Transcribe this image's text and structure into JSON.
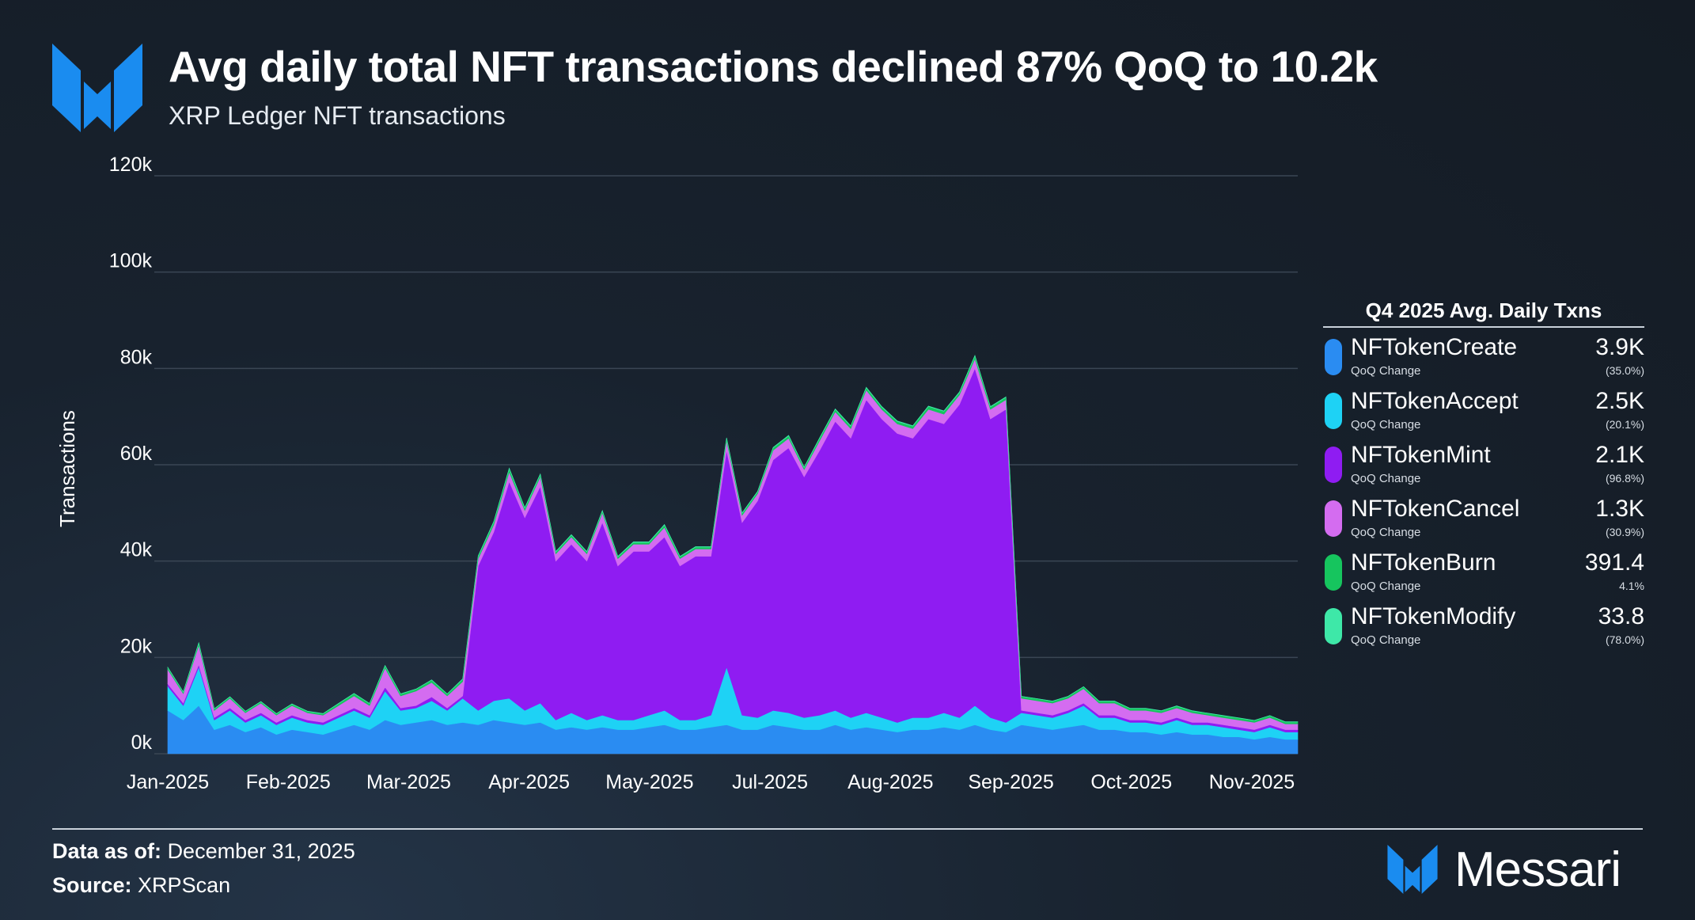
{
  "header": {
    "title": "Avg daily total NFT transactions declined 87% QoQ to 10.2k",
    "subtitle": "XRP Ledger NFT transactions"
  },
  "chart_data": {
    "type": "area",
    "stacked": true,
    "ylabel": "Transactions",
    "ylim": [
      0,
      120000
    ],
    "yticks": [
      "0k",
      "20k",
      "40k",
      "60k",
      "80k",
      "100k",
      "120k"
    ],
    "xticks": [
      "Jan-2025",
      "Feb-2025",
      "Mar-2025",
      "Apr-2025",
      "May-2025",
      "Jul-2025",
      "Aug-2025",
      "Sep-2025",
      "Oct-2025",
      "Nov-2025"
    ],
    "x_start": "2025-01-01",
    "x_end": "2025-12-31",
    "grid": true,
    "legend_position": "right",
    "dates": [
      "2025-01-01",
      "2025-01-06",
      "2025-01-11",
      "2025-01-16",
      "2025-01-21",
      "2025-01-26",
      "2025-01-31",
      "2025-02-05",
      "2025-02-10",
      "2025-02-15",
      "2025-02-20",
      "2025-02-25",
      "2025-03-02",
      "2025-03-07",
      "2025-03-12",
      "2025-03-17",
      "2025-03-22",
      "2025-03-27",
      "2025-04-01",
      "2025-04-06",
      "2025-04-11",
      "2025-04-16",
      "2025-04-21",
      "2025-04-26",
      "2025-05-01",
      "2025-05-06",
      "2025-05-11",
      "2025-05-16",
      "2025-05-21",
      "2025-05-26",
      "2025-05-31",
      "2025-06-05",
      "2025-06-10",
      "2025-06-15",
      "2025-06-20",
      "2025-06-25",
      "2025-06-30",
      "2025-07-05",
      "2025-07-10",
      "2025-07-15",
      "2025-07-20",
      "2025-07-25",
      "2025-07-30",
      "2025-08-04",
      "2025-08-09",
      "2025-08-14",
      "2025-08-19",
      "2025-08-24",
      "2025-08-29",
      "2025-09-03",
      "2025-09-08",
      "2025-09-13",
      "2025-09-18",
      "2025-09-23",
      "2025-09-28",
      "2025-10-03",
      "2025-10-08",
      "2025-10-13",
      "2025-10-18",
      "2025-10-23",
      "2025-10-28",
      "2025-11-02",
      "2025-11-07",
      "2025-11-12",
      "2025-11-17",
      "2025-11-22",
      "2025-11-27",
      "2025-12-02",
      "2025-12-07",
      "2025-12-12",
      "2025-12-17",
      "2025-12-22",
      "2025-12-27",
      "2025-12-31"
    ],
    "series": [
      {
        "name": "NFTokenCreate",
        "color": "#2a8cf2",
        "values": [
          9000,
          7000,
          10000,
          5000,
          6000,
          4500,
          5500,
          4000,
          5000,
          4500,
          4000,
          5000,
          6000,
          5000,
          7000,
          6000,
          6500,
          7000,
          6000,
          6500,
          6000,
          7000,
          6500,
          6000,
          6500,
          5000,
          5500,
          5000,
          5500,
          5000,
          5000,
          5500,
          6000,
          5000,
          5000,
          5500,
          6000,
          5000,
          5000,
          6000,
          5500,
          5000,
          5000,
          6000,
          5000,
          5500,
          5000,
          4500,
          5000,
          5000,
          5500,
          5000,
          6000,
          5000,
          4500,
          6000,
          5500,
          5000,
          5500,
          6000,
          5000,
          5000,
          4500,
          4500,
          4000,
          4500,
          4000,
          4000,
          3500,
          3500,
          3000,
          3500,
          3000,
          3000
        ]
      },
      {
        "name": "NFTokenAccept",
        "color": "#1ed2f5",
        "values": [
          5000,
          3000,
          8000,
          2000,
          3000,
          2000,
          2500,
          2000,
          2500,
          2000,
          2000,
          2500,
          3000,
          2500,
          6000,
          3000,
          3000,
          4000,
          3000,
          5000,
          3000,
          4000,
          5000,
          3000,
          4000,
          2000,
          3000,
          2000,
          2500,
          2000,
          2000,
          2500,
          3000,
          2000,
          2000,
          2500,
          12000,
          3000,
          2500,
          3000,
          3000,
          2500,
          3000,
          3000,
          2500,
          3000,
          2500,
          2000,
          2500,
          2500,
          3000,
          2500,
          4000,
          2500,
          2000,
          2500,
          2500,
          2500,
          3000,
          4000,
          2500,
          2500,
          2000,
          2000,
          2000,
          2500,
          2000,
          2000,
          2000,
          1500,
          1500,
          2000,
          1500,
          1500
        ]
      },
      {
        "name": "NFTokenMint",
        "color": "#8f1cf2",
        "values": [
          500,
          500,
          500,
          500,
          500,
          500,
          500,
          500,
          500,
          500,
          500,
          500,
          500,
          500,
          800,
          500,
          500,
          800,
          500,
          500,
          30000,
          35000,
          45000,
          40000,
          45000,
          33000,
          35000,
          33000,
          40000,
          32000,
          35000,
          34000,
          36000,
          32000,
          34000,
          33000,
          45000,
          40000,
          45000,
          52000,
          55000,
          50000,
          55000,
          60000,
          58000,
          65000,
          62000,
          60000,
          58000,
          62000,
          60000,
          65000,
          70000,
          62000,
          65000,
          500,
          500,
          500,
          500,
          500,
          500,
          500,
          500,
          500,
          500,
          500,
          500,
          500,
          500,
          500,
          500,
          500,
          500,
          500
        ]
      },
      {
        "name": "NFTokenCancel",
        "color": "#d46cf0",
        "values": [
          3000,
          2000,
          4000,
          1500,
          2000,
          1500,
          2000,
          1500,
          2000,
          1500,
          1500,
          2000,
          2500,
          2000,
          4000,
          2500,
          3000,
          3000,
          2500,
          3000,
          1500,
          1500,
          2000,
          1500,
          2000,
          1500,
          1500,
          1500,
          2000,
          1500,
          1500,
          1500,
          2000,
          1500,
          1500,
          1500,
          2000,
          1500,
          1500,
          2000,
          2000,
          1500,
          2000,
          2000,
          2000,
          2000,
          2000,
          2000,
          2000,
          2000,
          2000,
          2000,
          2000,
          2000,
          2000,
          2500,
          2500,
          2500,
          2500,
          3000,
          2500,
          2500,
          2000,
          2000,
          2000,
          2000,
          2000,
          1500,
          1500,
          1500,
          1500,
          1500,
          1200,
          1200
        ]
      },
      {
        "name": "NFTokenBurn",
        "color": "#16c55e",
        "values": [
          400,
          300,
          500,
          300,
          300,
          300,
          300,
          300,
          300,
          300,
          300,
          400,
          500,
          400,
          500,
          400,
          400,
          500,
          400,
          500,
          500,
          600,
          700,
          500,
          500,
          400,
          400,
          400,
          400,
          400,
          400,
          400,
          500,
          400,
          400,
          400,
          500,
          400,
          400,
          500,
          500,
          400,
          500,
          500,
          500,
          500,
          500,
          500,
          500,
          600,
          600,
          500,
          600,
          500,
          500,
          400,
          400,
          400,
          400,
          400,
          400,
          400,
          400,
          400,
          400,
          400,
          400,
          400,
          400,
          400,
          400,
          400,
          400,
          400
        ]
      },
      {
        "name": "NFTokenModify",
        "color": "#3ee8a8",
        "values": [
          50,
          50,
          50,
          50,
          50,
          50,
          50,
          50,
          50,
          50,
          50,
          50,
          50,
          50,
          50,
          50,
          50,
          50,
          50,
          50,
          100,
          100,
          100,
          100,
          100,
          100,
          100,
          100,
          100,
          100,
          100,
          100,
          100,
          100,
          100,
          100,
          100,
          100,
          100,
          100,
          100,
          100,
          100,
          100,
          100,
          100,
          100,
          100,
          100,
          100,
          100,
          100,
          100,
          100,
          100,
          40,
          40,
          40,
          40,
          40,
          40,
          40,
          40,
          40,
          40,
          40,
          40,
          40,
          40,
          40,
          40,
          40,
          40,
          40
        ]
      }
    ]
  },
  "legend": {
    "title": "Q4 2025 Avg. Daily Txns",
    "sub_label": "QoQ Change",
    "items": [
      {
        "name": "NFTokenCreate",
        "value": "3.9K",
        "change": "(35.0%)",
        "color": "#2a8cf2"
      },
      {
        "name": "NFTokenAccept",
        "value": "2.5K",
        "change": "(20.1%)",
        "color": "#1ed2f5"
      },
      {
        "name": "NFTokenMint",
        "value": "2.1K",
        "change": "(96.8%)",
        "color": "#8f1cf2"
      },
      {
        "name": "NFTokenCancel",
        "value": "1.3K",
        "change": "(30.9%)",
        "color": "#d46cf0"
      },
      {
        "name": "NFTokenBurn",
        "value": "391.4",
        "change": "4.1%",
        "color": "#16c55e"
      },
      {
        "name": "NFTokenModify",
        "value": "33.8",
        "change": "(78.0%)",
        "color": "#3ee8a8"
      }
    ]
  },
  "footer": {
    "data_as_of_label": "Data as of:",
    "data_as_of_value": "December 31, 2025",
    "source_label": "Source:",
    "source_value": "XRPScan",
    "brand": "Messari"
  },
  "colors": {
    "brand_blue": "#1a8cf0",
    "grid": "#3a4654",
    "axis_text": "#ffffff"
  }
}
